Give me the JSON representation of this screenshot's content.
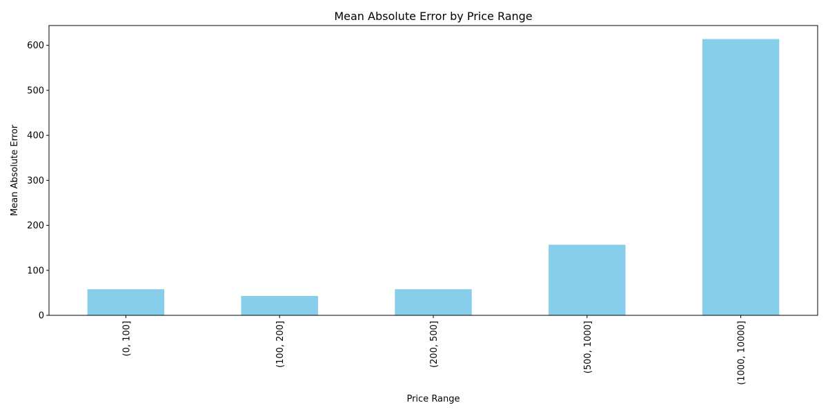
{
  "chart_data": {
    "type": "bar",
    "title": "Mean Absolute Error by Price Range",
    "xlabel": "Price Range",
    "ylabel": "Mean Absolute Error",
    "categories": [
      "(0, 100]",
      "(100, 200]",
      "(200, 500]",
      "(500, 1000]",
      "(1000, 10000]"
    ],
    "values": [
      58,
      43,
      58,
      157,
      614
    ],
    "ylim": [
      0,
      644
    ],
    "yticks": [
      0,
      100,
      200,
      300,
      400,
      500,
      600
    ],
    "grid": false,
    "legend": "none",
    "colors": {
      "bar": "#87CEEB",
      "axis": "#000000"
    }
  }
}
